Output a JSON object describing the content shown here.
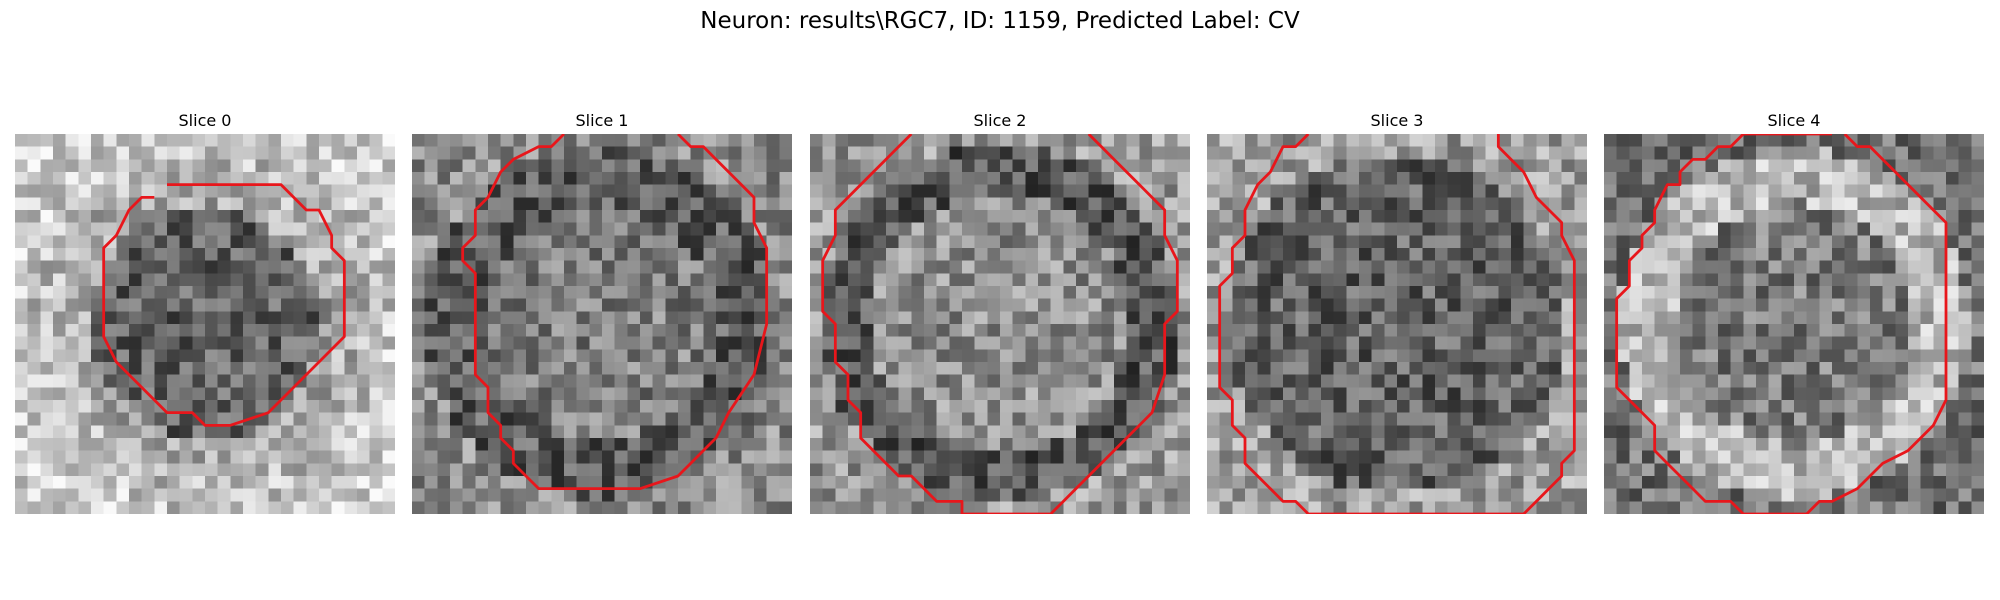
{
  "figure": {
    "title": "Neuron: results\\RGC7, ID: 1159, Predicted Label: CV"
  },
  "colors": {
    "contour": "#e8161b",
    "background": "#ffffff",
    "colormap": "gray"
  },
  "grid_size": 30,
  "panels": [
    {
      "title": "Slice 0",
      "pattern": "dark-disk",
      "seed": 11,
      "contour": [
        [
          12,
          4
        ],
        [
          21,
          4
        ],
        [
          23,
          6
        ],
        [
          24,
          6
        ],
        [
          25,
          8
        ],
        [
          25,
          9
        ],
        [
          26,
          10
        ],
        [
          26,
          16
        ],
        [
          24,
          18
        ],
        [
          20,
          22
        ],
        [
          17,
          23
        ],
        [
          15,
          23
        ],
        [
          14,
          22
        ],
        [
          12,
          22
        ],
        [
          8,
          18
        ],
        [
          7,
          16
        ],
        [
          7,
          9
        ],
        [
          8,
          8
        ],
        [
          9,
          6
        ],
        [
          10,
          5
        ],
        [
          11,
          5
        ]
      ]
    },
    {
      "title": "Slice 1",
      "pattern": "dark-ring",
      "seed": 23,
      "contour": [
        [
          12,
          0
        ],
        [
          11,
          1
        ],
        [
          10,
          1
        ],
        [
          8,
          2
        ],
        [
          7,
          3
        ],
        [
          6,
          5
        ],
        [
          5,
          6
        ],
        [
          5,
          8
        ],
        [
          4,
          9
        ],
        [
          4,
          10
        ],
        [
          5,
          11
        ],
        [
          5,
          19
        ],
        [
          6,
          20
        ],
        [
          6,
          22
        ],
        [
          7,
          23
        ],
        [
          7,
          24
        ],
        [
          8,
          25
        ],
        [
          8,
          26
        ],
        [
          10,
          28
        ],
        [
          12,
          28
        ],
        [
          11,
          28
        ],
        [
          12,
          28
        ],
        [
          18,
          28
        ],
        [
          21,
          27
        ],
        [
          22,
          26
        ],
        [
          23,
          25
        ],
        [
          24,
          24
        ],
        [
          25,
          22
        ],
        [
          27,
          19
        ],
        [
          28,
          15
        ],
        [
          28,
          9
        ],
        [
          27,
          7
        ],
        [
          27,
          5
        ],
        [
          25,
          3
        ],
        [
          24,
          2
        ],
        [
          23,
          1
        ],
        [
          22,
          1
        ],
        [
          21,
          0
        ]
      ]
    },
    {
      "title": "Slice 2",
      "pattern": "dark-band",
      "seed": 37,
      "contour": [
        [
          8,
          0
        ],
        [
          7,
          1
        ],
        [
          6,
          2
        ],
        [
          5,
          3
        ],
        [
          3,
          5
        ],
        [
          2,
          6
        ],
        [
          2,
          8
        ],
        [
          1,
          10
        ],
        [
          1,
          14
        ],
        [
          2,
          15
        ],
        [
          2,
          18
        ],
        [
          3,
          19
        ],
        [
          3,
          21
        ],
        [
          4,
          22
        ],
        [
          4,
          24
        ],
        [
          6,
          26
        ],
        [
          7,
          27
        ],
        [
          8,
          27
        ],
        [
          9,
          28
        ],
        [
          10,
          29
        ],
        [
          12,
          29
        ],
        [
          12,
          30
        ],
        [
          19,
          30
        ],
        [
          20,
          29
        ],
        [
          21,
          28
        ],
        [
          22,
          27
        ],
        [
          24,
          25
        ],
        [
          25,
          24
        ],
        [
          27,
          22
        ],
        [
          28,
          19
        ],
        [
          28,
          15
        ],
        [
          29,
          14
        ],
        [
          29,
          10
        ],
        [
          28,
          8
        ],
        [
          28,
          6
        ],
        [
          27,
          5
        ],
        [
          26,
          4
        ],
        [
          25,
          3
        ],
        [
          24,
          2
        ],
        [
          23,
          1
        ],
        [
          22,
          0
        ]
      ]
    },
    {
      "title": "Slice 3",
      "pattern": "dark-full",
      "seed": 41,
      "contour": [
        [
          8,
          0
        ],
        [
          7,
          1
        ],
        [
          6,
          1
        ],
        [
          5,
          3
        ],
        [
          4,
          4
        ],
        [
          3,
          6
        ],
        [
          3,
          8
        ],
        [
          2,
          9
        ],
        [
          2,
          11
        ],
        [
          1,
          12
        ],
        [
          1,
          20
        ],
        [
          2,
          21
        ],
        [
          2,
          23
        ],
        [
          3,
          24
        ],
        [
          3,
          26
        ],
        [
          4,
          27
        ],
        [
          5,
          28
        ],
        [
          6,
          29
        ],
        [
          7,
          29
        ],
        [
          8,
          30
        ],
        [
          25,
          30
        ],
        [
          26,
          29
        ],
        [
          27,
          28
        ],
        [
          28,
          27
        ],
        [
          28,
          26
        ],
        [
          29,
          25
        ],
        [
          29,
          10
        ],
        [
          28,
          8
        ],
        [
          28,
          7
        ],
        [
          27,
          6
        ],
        [
          26,
          5
        ],
        [
          25,
          3
        ],
        [
          24,
          2
        ],
        [
          23,
          1
        ],
        [
          23,
          0
        ]
      ]
    },
    {
      "title": "Slice 4",
      "pattern": "bright-ring",
      "seed": 53,
      "contour": [
        [
          18,
          0
        ],
        [
          16,
          0
        ],
        [
          11,
          0
        ],
        [
          10,
          1
        ],
        [
          9,
          1
        ],
        [
          8,
          2
        ],
        [
          7,
          2
        ],
        [
          6,
          3
        ],
        [
          6,
          4
        ],
        [
          5,
          4
        ],
        [
          4,
          6
        ],
        [
          4,
          7
        ],
        [
          3,
          8
        ],
        [
          3,
          9
        ],
        [
          2,
          10
        ],
        [
          2,
          12
        ],
        [
          1,
          13
        ],
        [
          1,
          20
        ],
        [
          2,
          21
        ],
        [
          3,
          22
        ],
        [
          4,
          23
        ],
        [
          4,
          25
        ],
        [
          5,
          26
        ],
        [
          6,
          27
        ],
        [
          7,
          28
        ],
        [
          8,
          29
        ],
        [
          10,
          29
        ],
        [
          11,
          30
        ],
        [
          16,
          30
        ],
        [
          17,
          29
        ],
        [
          18,
          29
        ],
        [
          20,
          28
        ],
        [
          21,
          27
        ],
        [
          22,
          26
        ],
        [
          24,
          25
        ],
        [
          25,
          24
        ],
        [
          26,
          23
        ],
        [
          27,
          21
        ],
        [
          27,
          7
        ],
        [
          26,
          6
        ],
        [
          24,
          4
        ],
        [
          23,
          3
        ],
        [
          22,
          2
        ],
        [
          21,
          1
        ],
        [
          20,
          1
        ],
        [
          19,
          0
        ]
      ]
    }
  ]
}
